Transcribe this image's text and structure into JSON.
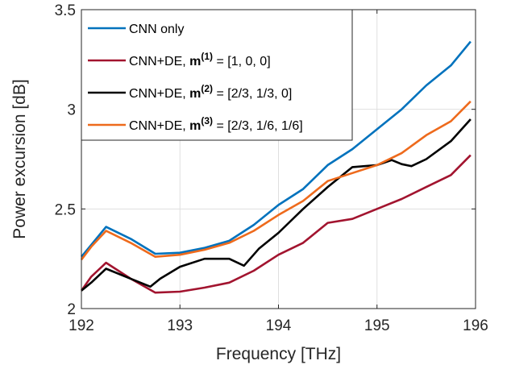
{
  "chart_data": {
    "type": "line",
    "xlabel": "Frequency [THz]",
    "ylabel": "Power excursion [dB]",
    "xlim": [
      192,
      196
    ],
    "ylim": [
      2,
      3.5
    ],
    "xticks": [
      "192",
      "193",
      "194",
      "195",
      "196"
    ],
    "yticks": [
      "2",
      "2.5",
      "3",
      "3.5"
    ],
    "grid": true,
    "legend_position": "top-left",
    "series": [
      {
        "name": "CNN only",
        "legend": {
          "prefix": "CNN only",
          "bold": "",
          "sup": "",
          "suffix": ""
        },
        "color": "#0072BD",
        "x": [
          192.0,
          192.1,
          192.25,
          192.5,
          192.75,
          193.0,
          193.25,
          193.5,
          193.75,
          194.0,
          194.25,
          194.5,
          194.75,
          195.0,
          195.25,
          195.5,
          195.75,
          195.95
        ],
        "y": [
          2.26,
          2.32,
          2.41,
          2.35,
          2.275,
          2.28,
          2.305,
          2.34,
          2.42,
          2.52,
          2.6,
          2.72,
          2.8,
          2.9,
          3.0,
          3.12,
          3.22,
          3.34
        ]
      },
      {
        "name": "CNN+DE, m(1) = [1, 0, 0]",
        "legend": {
          "prefix": "CNN+DE,  ",
          "bold": "m",
          "sup": "(1)",
          "suffix": " = [1, 0, 0]"
        },
        "color": "#A2142F",
        "x": [
          192.0,
          192.1,
          192.25,
          192.5,
          192.75,
          193.0,
          193.25,
          193.5,
          193.75,
          194.0,
          194.25,
          194.5,
          194.75,
          195.0,
          195.25,
          195.5,
          195.75,
          195.95
        ],
        "y": [
          2.09,
          2.16,
          2.23,
          2.15,
          2.08,
          2.085,
          2.105,
          2.13,
          2.19,
          2.27,
          2.33,
          2.43,
          2.45,
          2.5,
          2.55,
          2.61,
          2.67,
          2.77
        ]
      },
      {
        "name": "CNN+DE, m(2) = [2/3, 1/3, 0]",
        "legend": {
          "prefix": "CNN+DE,  ",
          "bold": "m",
          "sup": "(2)",
          "suffix": " = [2/3, 1/3, 0]"
        },
        "color": "#000000",
        "x": [
          192.0,
          192.1,
          192.25,
          192.5,
          192.7,
          192.8,
          193.0,
          193.25,
          193.5,
          193.65,
          193.8,
          194.0,
          194.25,
          194.5,
          194.75,
          195.0,
          195.15,
          195.25,
          195.35,
          195.5,
          195.75,
          195.95
        ],
        "y": [
          2.09,
          2.13,
          2.2,
          2.15,
          2.11,
          2.15,
          2.21,
          2.25,
          2.25,
          2.215,
          2.3,
          2.38,
          2.5,
          2.61,
          2.71,
          2.72,
          2.745,
          2.725,
          2.715,
          2.75,
          2.84,
          2.95
        ]
      },
      {
        "name": "CNN+DE, m(3) = [2/3, 1/6, 1/6]",
        "legend": {
          "prefix": "CNN+DE,  ",
          "bold": "m",
          "sup": "(3)",
          "suffix": " = [2/3, 1/6, 1/6]"
        },
        "color": "#EE6A1C",
        "x": [
          192.0,
          192.1,
          192.25,
          192.5,
          192.75,
          193.0,
          193.25,
          193.5,
          193.75,
          194.0,
          194.25,
          194.5,
          194.75,
          195.0,
          195.25,
          195.5,
          195.75,
          195.95
        ],
        "y": [
          2.245,
          2.31,
          2.39,
          2.33,
          2.26,
          2.27,
          2.295,
          2.33,
          2.39,
          2.47,
          2.54,
          2.64,
          2.68,
          2.72,
          2.78,
          2.87,
          2.94,
          3.04
        ]
      }
    ]
  }
}
